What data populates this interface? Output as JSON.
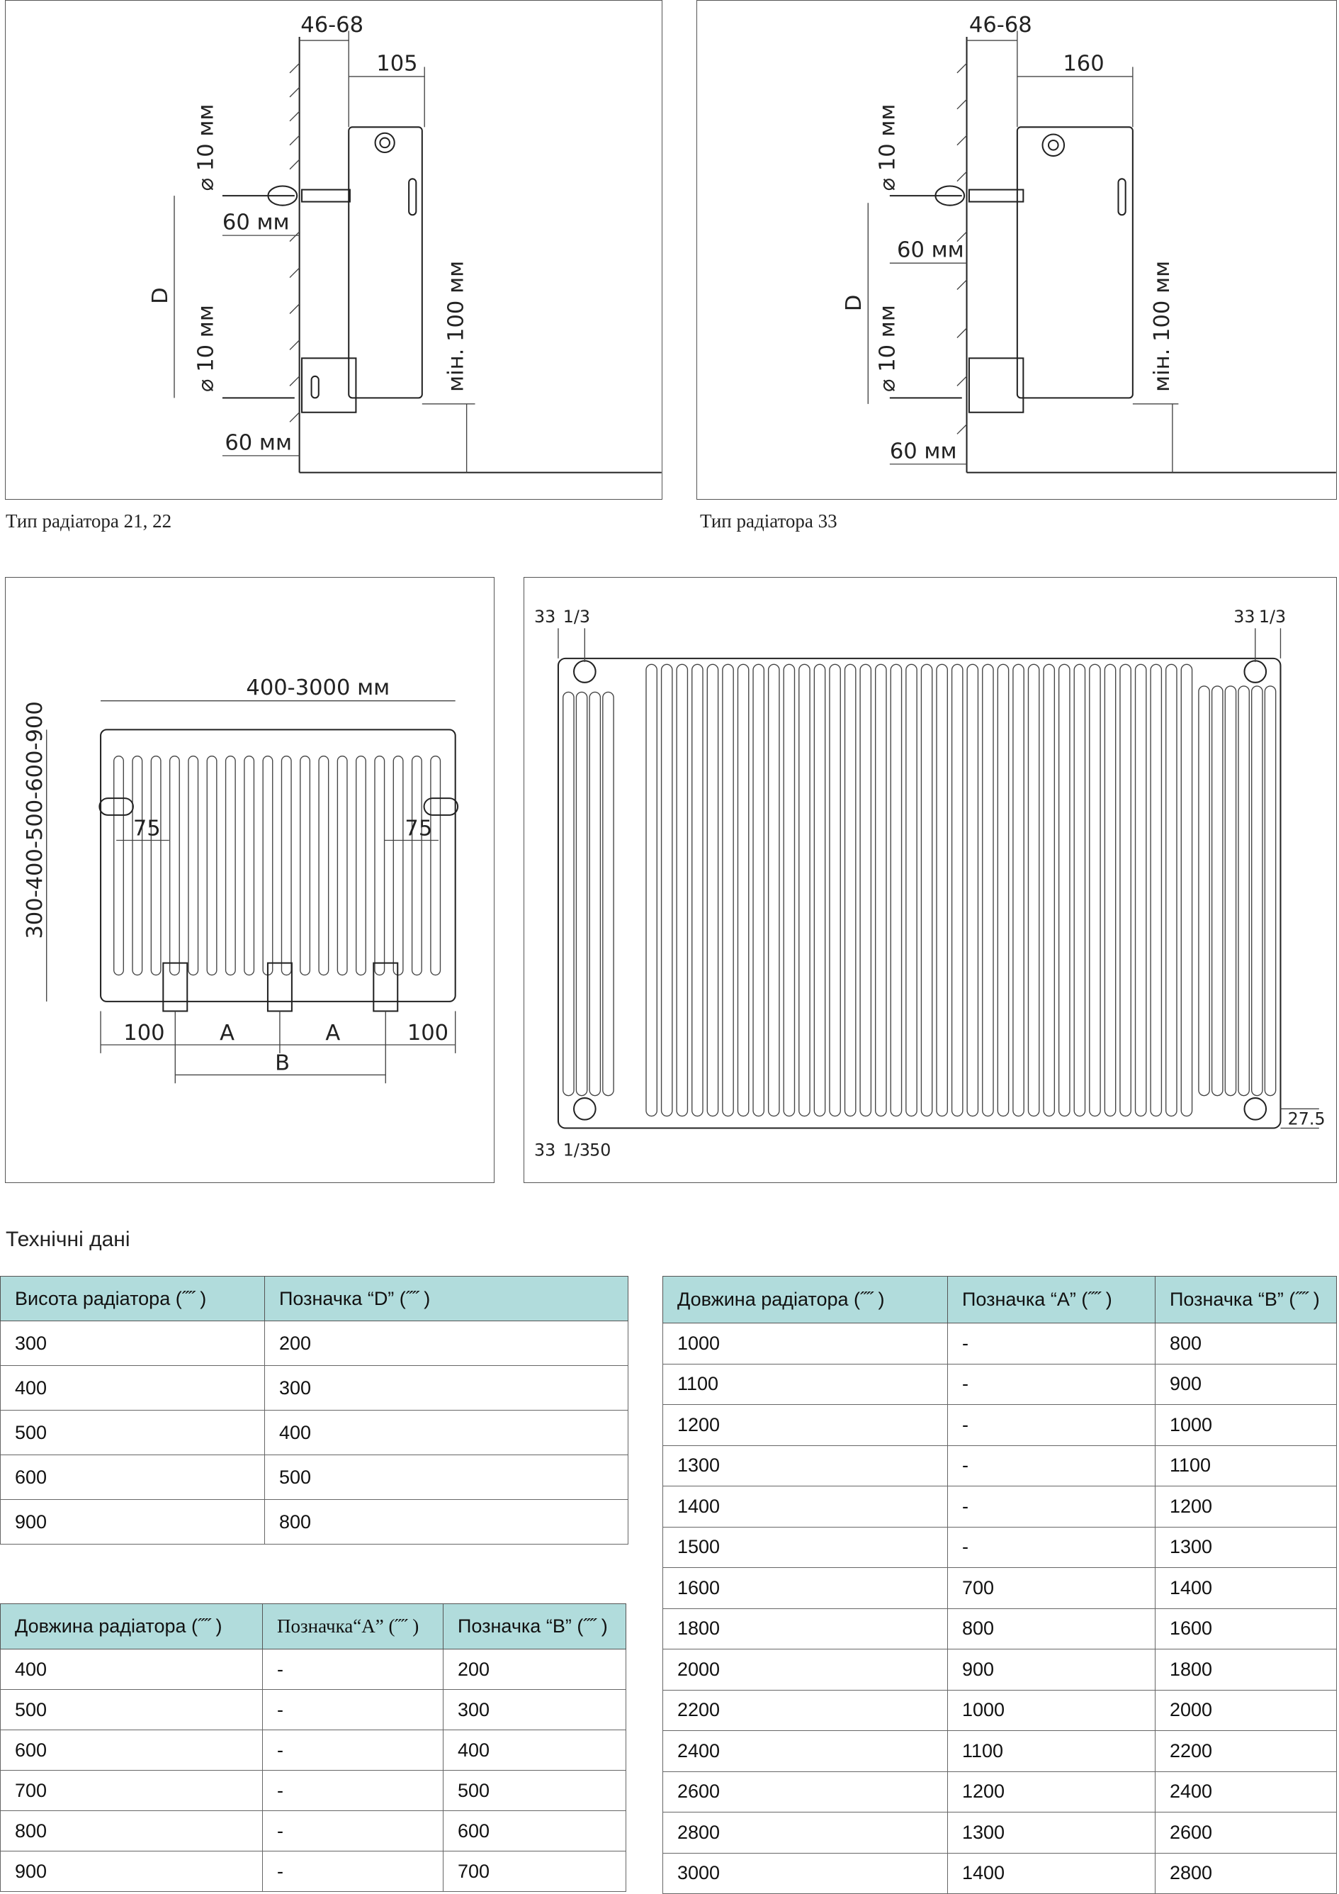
{
  "diagrams": {
    "type_21_22": {
      "caption": "Тип радіатора 21, 22",
      "wall_offset": "46-68",
      "depth": "105",
      "diameter_top": "⌀ 10 мм",
      "diameter_bottom": "⌀ 10 мм",
      "drill_top": "60 мм",
      "drill_bottom": "60 мм",
      "d_label": "D",
      "min_floor": "мін. 100 мм"
    },
    "type_33": {
      "caption": "Тип радіатора 33",
      "wall_offset": "46-68",
      "depth": "160",
      "diameter_top": "⌀ 10 мм",
      "diameter_bottom": "⌀ 10 мм",
      "drill_top": "60 мм",
      "drill_bottom": "60 мм",
      "d_label": "D",
      "min_floor": "мін. 100 мм"
    },
    "front_view": {
      "length": "400-3000 мм",
      "heights": "300-400-500-600-900",
      "offset_left": "75",
      "offset_right": "75",
      "edge_left": "100",
      "a_left": "A",
      "a_right": "A",
      "edge_right": "100",
      "b_label": "B"
    },
    "detail_view": {
      "top_left_33": "33",
      "top_left_frac": "1/3",
      "top_right_33": "33",
      "top_right_frac": "1/3",
      "bottom_33": "33",
      "bottom_frac": "1/3",
      "bottom_50": "50",
      "right_offset": "27.5"
    }
  },
  "section_title": "Технічні дані",
  "table_height": {
    "headers": [
      "Висота радіатора (˝˝ )",
      "Позначка “D” (˝˝ )"
    ],
    "rows": [
      [
        "300",
        "200"
      ],
      [
        "400",
        "300"
      ],
      [
        "500",
        "400"
      ],
      [
        "600",
        "500"
      ],
      [
        "900",
        "800"
      ]
    ]
  },
  "table_length_small": {
    "headers": [
      "Довжина радіатора (˝˝ )",
      "Позначка“A” (˝˝ )",
      "Позначка “B” (˝˝ )"
    ],
    "rows": [
      [
        "400",
        "-",
        "200"
      ],
      [
        "500",
        "-",
        "300"
      ],
      [
        "600",
        "-",
        "400"
      ],
      [
        "700",
        "-",
        "500"
      ],
      [
        "800",
        "-",
        "600"
      ],
      [
        "900",
        "-",
        "700"
      ]
    ]
  },
  "table_length_large": {
    "headers": [
      "Довжина радіатора (˝˝ )",
      "Позначка “A” (˝˝ )",
      "Позначка “B” (˝˝ )"
    ],
    "rows": [
      [
        "1000",
        "-",
        "800"
      ],
      [
        "1100",
        "-",
        "900"
      ],
      [
        "1200",
        "-",
        "1000"
      ],
      [
        "1300",
        "-",
        "1100"
      ],
      [
        "1400",
        "-",
        "1200"
      ],
      [
        "1500",
        "-",
        "1300"
      ],
      [
        "1600",
        "700",
        "1400"
      ],
      [
        "1800",
        "800",
        "1600"
      ],
      [
        "2000",
        "900",
        "1800"
      ],
      [
        "2200",
        "1000",
        "2000"
      ],
      [
        "2400",
        "1100",
        "2200"
      ],
      [
        "2600",
        "1200",
        "2400"
      ],
      [
        "2800",
        "1300",
        "2600"
      ],
      [
        "3000",
        "1400",
        "2800"
      ]
    ]
  },
  "colors": {
    "table_header": "#b1dcdc",
    "border": "#555555"
  }
}
